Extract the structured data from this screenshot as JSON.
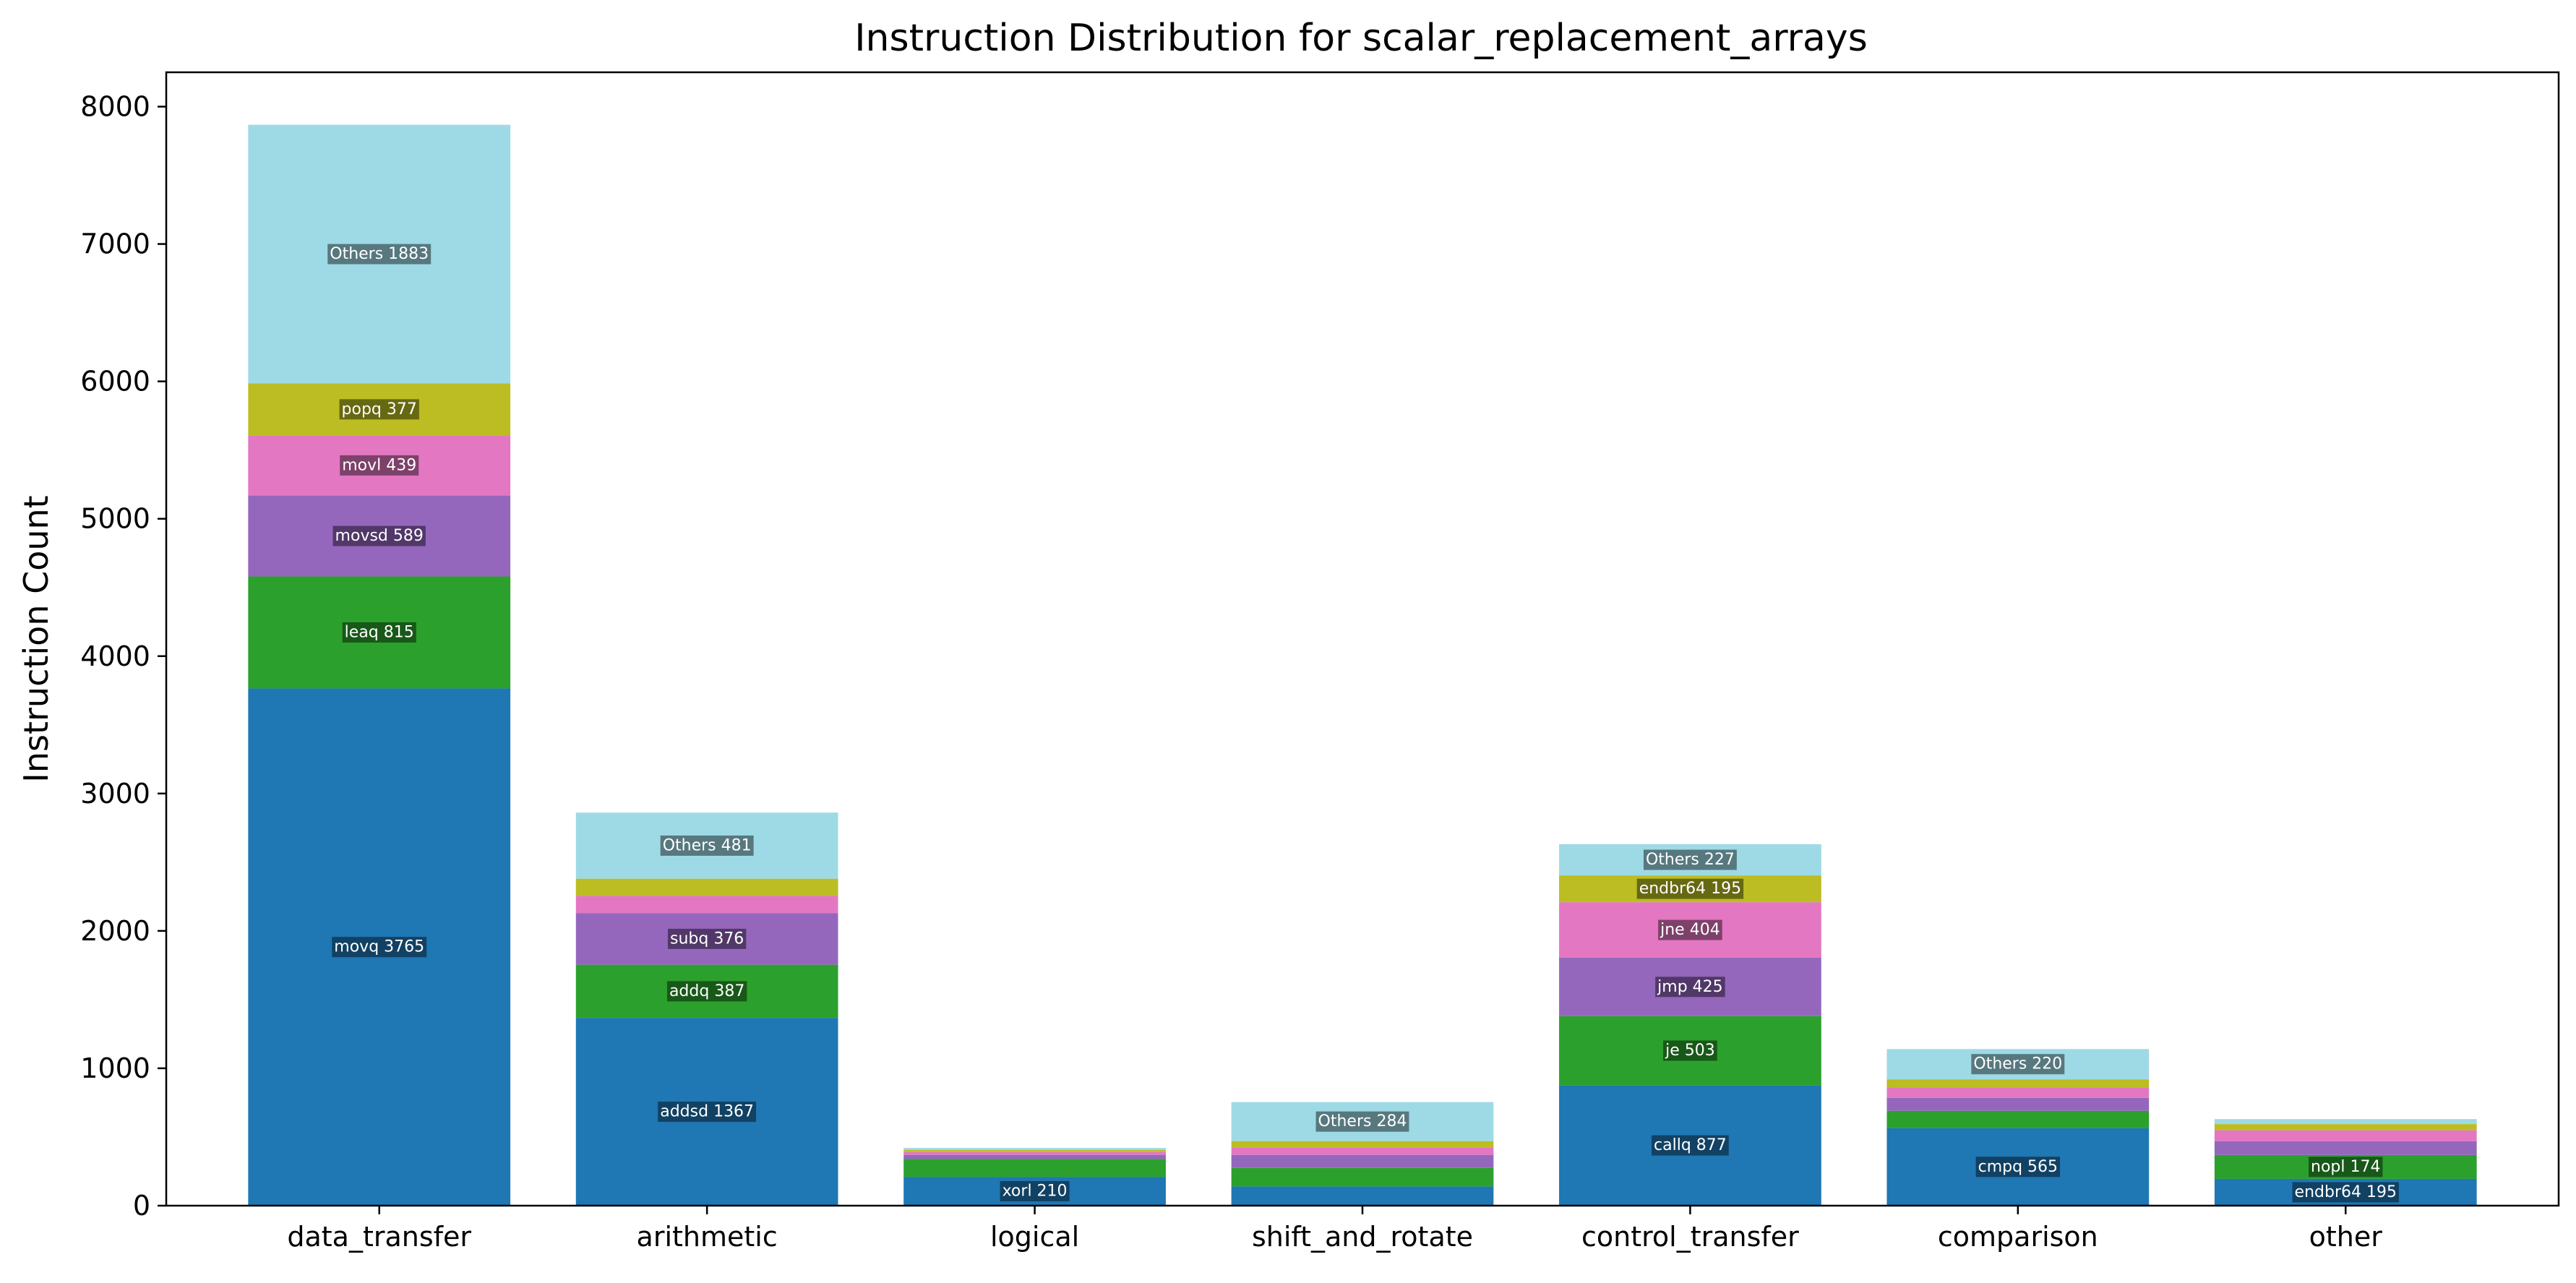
{
  "chart_data": {
    "type": "bar",
    "stacked": true,
    "title": "Instruction Distribution for scalar_replacement_arrays",
    "xlabel": "",
    "ylabel": "Instruction Count",
    "ylim": [
      0,
      8250
    ],
    "yticks": [
      0,
      1000,
      2000,
      3000,
      4000,
      5000,
      6000,
      7000,
      8000
    ],
    "grid": false,
    "legend": "none",
    "categories": [
      "data_transfer",
      "arithmetic",
      "logical",
      "shift_and_rotate",
      "control_transfer",
      "comparison",
      "other"
    ],
    "segment_colors": [
      "#1f77b4",
      "#2ca02c",
      "#9467bd",
      "#e377c2",
      "#bcbd22",
      "#9edae5"
    ],
    "stacks": [
      {
        "category": "data_transfer",
        "segments": [
          {
            "name": "movq",
            "value": 3765,
            "label": "movq 3765"
          },
          {
            "name": "leaq",
            "value": 815,
            "label": "leaq 815"
          },
          {
            "name": "movsd",
            "value": 589,
            "label": "movsd 589"
          },
          {
            "name": "movl",
            "value": 439,
            "label": "movl 439"
          },
          {
            "name": "popq",
            "value": 377,
            "label": "popq 377"
          },
          {
            "name": "Others",
            "value": 1883,
            "label": "Others 1883"
          }
        ]
      },
      {
        "category": "arithmetic",
        "segments": [
          {
            "name": "addsd",
            "value": 1367,
            "label": "addsd 1367"
          },
          {
            "name": "addq",
            "value": 387,
            "label": "addq 387"
          },
          {
            "name": "subq",
            "value": 376,
            "label": "subq 376"
          },
          {
            "value": 125,
            "label": ""
          },
          {
            "value": 125,
            "label": ""
          },
          {
            "name": "Others",
            "value": 481,
            "label": "Others 481"
          }
        ]
      },
      {
        "category": "logical",
        "segments": [
          {
            "name": "xorl",
            "value": 210,
            "label": "xorl 210"
          },
          {
            "value": 130,
            "label": ""
          },
          {
            "value": 30,
            "label": ""
          },
          {
            "value": 20,
            "label": ""
          },
          {
            "value": 15,
            "label": ""
          },
          {
            "value": 15,
            "label": ""
          }
        ]
      },
      {
        "category": "shift_and_rotate",
        "segments": [
          {
            "value": 140,
            "label": ""
          },
          {
            "value": 135,
            "label": ""
          },
          {
            "value": 95,
            "label": ""
          },
          {
            "value": 55,
            "label": ""
          },
          {
            "value": 45,
            "label": ""
          },
          {
            "name": "Others",
            "value": 284,
            "label": "Others 284"
          }
        ]
      },
      {
        "category": "control_transfer",
        "segments": [
          {
            "name": "callq",
            "value": 877,
            "label": "callq 877"
          },
          {
            "name": "je",
            "value": 503,
            "label": "je 503"
          },
          {
            "name": "jmp",
            "value": 425,
            "label": "jmp 425"
          },
          {
            "name": "jne",
            "value": 404,
            "label": "jne 404"
          },
          {
            "name": "endbr64",
            "value": 195,
            "label": "endbr64 195"
          },
          {
            "name": "Others",
            "value": 227,
            "label": "Others 227"
          }
        ]
      },
      {
        "category": "comparison",
        "segments": [
          {
            "name": "cmpq",
            "value": 565,
            "label": "cmpq 565"
          },
          {
            "value": 125,
            "label": ""
          },
          {
            "value": 95,
            "label": ""
          },
          {
            "value": 75,
            "label": ""
          },
          {
            "value": 60,
            "label": ""
          },
          {
            "name": "Others",
            "value": 220,
            "label": "Others 220"
          }
        ]
      },
      {
        "category": "other",
        "segments": [
          {
            "name": "endbr64",
            "value": 195,
            "label": "endbr64 195"
          },
          {
            "name": "nopl",
            "value": 174,
            "label": "nopl 174"
          },
          {
            "value": 100,
            "label": ""
          },
          {
            "value": 80,
            "label": ""
          },
          {
            "value": 45,
            "label": ""
          },
          {
            "value": 36,
            "label": ""
          }
        ]
      }
    ]
  }
}
